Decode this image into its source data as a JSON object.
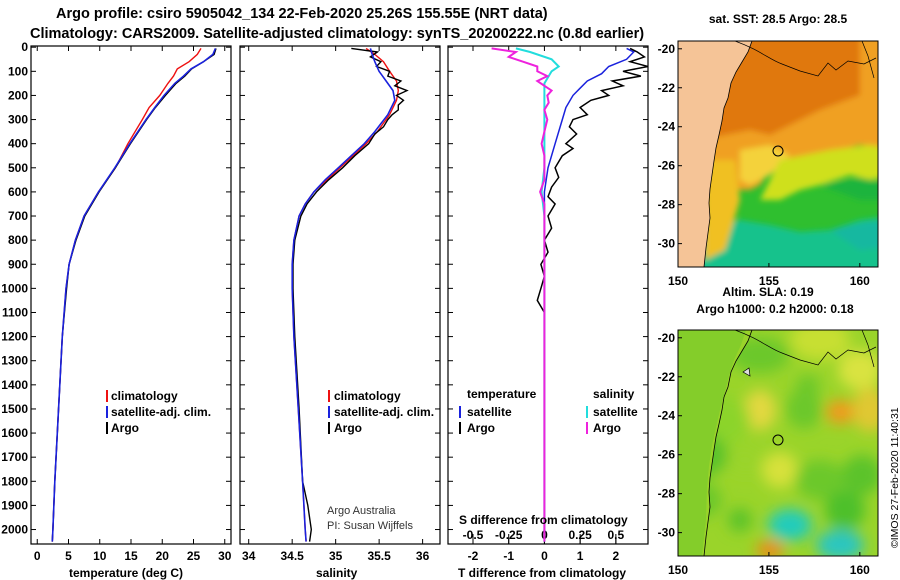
{
  "header": {
    "title_line1": "Argo profile: csiro 5905042_134 22-Feb-2020 25.26S 155.55E (NRT data)",
    "title_line2": "Climatology: CARS2009. Satellite-adjusted climatology: synTS_20200222.nc (0.8d earlier)"
  },
  "credits": {
    "line1": "Argo Australia",
    "line2": "PI: Susan Wijffels",
    "stamp": "©IMOS 27-Feb-2020 11:40:31"
  },
  "colors": {
    "climatology": "#ee1111",
    "satellite": "#1a22dd",
    "argo": "#000000",
    "sat_salinity": "#22dddd",
    "argo_salinity": "#ee22dd",
    "land": "#f5c497"
  },
  "chart_data": [
    {
      "type": "line",
      "name": "temperature-profile",
      "xlabel": "temperature (deg C)",
      "ylabel": "",
      "xlim": [
        -1,
        31
      ],
      "ylim": [
        2060,
        -5
      ],
      "xticks": [
        0,
        5,
        10,
        15,
        20,
        25,
        30
      ],
      "yticks": [
        0,
        100,
        200,
        300,
        400,
        500,
        600,
        700,
        800,
        900,
        1000,
        1100,
        1200,
        1300,
        1400,
        1500,
        1600,
        1700,
        1800,
        1900,
        2000
      ],
      "legend": [
        "climatology",
        "satellite-adj. clim.",
        "Argo"
      ],
      "series": [
        {
          "name": "climatology",
          "depth": [
            5,
            30,
            60,
            90,
            120,
            150,
            200,
            250,
            300,
            400,
            500,
            600,
            700,
            800,
            900,
            1000,
            1200,
            1400,
            1600,
            1800,
            2000,
            2050
          ],
          "values": [
            26.2,
            25.6,
            24.3,
            22.4,
            21.8,
            20.9,
            19.6,
            17.9,
            16.8,
            14.5,
            12.5,
            9.8,
            7.5,
            6.1,
            5.1,
            4.6,
            4.0,
            3.6,
            3.2,
            2.8,
            2.5,
            2.4
          ]
        },
        {
          "name": "satellite-adj. clim.",
          "depth": [
            5,
            30,
            60,
            90,
            120,
            150,
            200,
            250,
            300,
            400,
            500,
            600,
            700,
            800,
            900,
            1000,
            1200,
            1400,
            1600,
            1800,
            2000,
            2050
          ],
          "values": [
            28.5,
            28.1,
            26.6,
            24.6,
            23.4,
            22.0,
            20.3,
            18.8,
            17.4,
            14.8,
            12.4,
            9.8,
            7.5,
            6.1,
            5.1,
            4.6,
            4.0,
            3.6,
            3.2,
            2.8,
            2.5,
            2.4
          ]
        },
        {
          "name": "Argo",
          "depth": [
            5,
            30,
            60,
            90,
            120,
            150,
            200,
            250,
            300,
            400,
            500,
            600,
            700,
            800,
            900,
            1000,
            1200,
            1400,
            1600,
            1800,
            2000,
            2050
          ],
          "values": [
            28.6,
            28.3,
            26.6,
            24.7,
            23.6,
            22.2,
            20.5,
            18.9,
            17.5,
            14.9,
            12.5,
            9.9,
            7.6,
            6.2,
            5.1,
            4.7,
            4.0,
            3.6,
            3.2,
            2.8,
            2.5,
            2.4
          ]
        }
      ]
    },
    {
      "type": "line",
      "name": "salinity-profile",
      "xlabel": "salinity",
      "xlim": [
        33.9,
        36.2
      ],
      "ylim": [
        2060,
        -5
      ],
      "xticks": [
        34,
        34.5,
        35,
        35.5,
        36
      ],
      "legend": [
        "climatology",
        "satellite-adj. clim.",
        "Argo"
      ],
      "series": [
        {
          "name": "climatology",
          "depth": [
            5,
            30,
            60,
            100,
            140,
            180,
            220,
            280,
            350,
            400,
            450,
            500,
            550,
            600,
            650,
            700,
            800,
            900,
            1000,
            1200,
            1500,
            1800,
            2000,
            2050
          ],
          "values": [
            35.35,
            35.45,
            35.55,
            35.62,
            35.7,
            35.72,
            35.7,
            35.62,
            35.48,
            35.35,
            35.2,
            35.05,
            34.9,
            34.75,
            34.65,
            34.58,
            34.52,
            34.5,
            34.5,
            34.52,
            34.57,
            34.62,
            34.65,
            34.66
          ]
        },
        {
          "name": "satellite-adj. clim.",
          "depth": [
            5,
            30,
            60,
            100,
            140,
            180,
            220,
            280,
            350,
            400,
            450,
            500,
            550,
            600,
            650,
            700,
            800,
            900,
            1000,
            1200,
            1500,
            1800,
            2000,
            2050
          ],
          "values": [
            35.4,
            35.42,
            35.45,
            35.5,
            35.58,
            35.66,
            35.68,
            35.6,
            35.45,
            35.33,
            35.18,
            35.03,
            34.88,
            34.75,
            34.65,
            34.58,
            34.52,
            34.5,
            34.5,
            34.52,
            34.57,
            34.62,
            34.65,
            34.66
          ]
        },
        {
          "name": "Argo",
          "depth": [
            5,
            20,
            40,
            60,
            80,
            100,
            120,
            140,
            160,
            180,
            200,
            220,
            240,
            260,
            280,
            300,
            330,
            360,
            400,
            450,
            500,
            550,
            600,
            650,
            700,
            800,
            900,
            1000,
            1200,
            1500,
            1800,
            1900,
            2000,
            2050
          ],
          "values": [
            35.18,
            35.48,
            35.4,
            35.52,
            35.47,
            35.62,
            35.6,
            35.75,
            35.68,
            35.82,
            35.7,
            35.78,
            35.72,
            35.72,
            35.65,
            35.6,
            35.55,
            35.45,
            35.38,
            35.22,
            35.08,
            34.92,
            34.78,
            34.67,
            34.6,
            34.53,
            34.51,
            34.51,
            34.53,
            34.58,
            34.62,
            34.68,
            34.72,
            34.7
          ]
        }
      ]
    },
    {
      "type": "line",
      "name": "difference-profile",
      "xlabel": "T difference from climatology",
      "top_xlabel": "S difference from climatology",
      "xlim": [
        -2.7,
        2.9
      ],
      "xticks": [
        -2,
        -1,
        0,
        1,
        2
      ],
      "top_xlim": [
        -0.675,
        0.725
      ],
      "top_xticks": [
        -0.5,
        -0.25,
        0,
        0.25,
        0.5
      ],
      "top_xtick_labels": [
        "-0.5",
        "-0.25",
        "0",
        "0.25",
        "0.5"
      ],
      "ylim": [
        2060,
        -5
      ],
      "legend_titles": [
        "temperature",
        "salinity"
      ],
      "legend": [
        "satellite",
        "Argo",
        "satellite",
        "Argo"
      ],
      "series": [
        {
          "name": "T satellite",
          "depth": [
            5,
            20,
            50,
            80,
            110,
            140,
            170,
            200,
            250,
            300,
            400,
            500,
            600,
            700,
            800,
            900,
            1000,
            1200,
            1500,
            2050
          ],
          "values": [
            2.3,
            2.5,
            2.3,
            1.8,
            1.6,
            1.2,
            1.0,
            0.8,
            0.6,
            0.5,
            0.3,
            0.1,
            0.0,
            0.0,
            0.0,
            0.0,
            0.0,
            0.0,
            0.0,
            0.0
          ]
        },
        {
          "name": "T Argo",
          "depth": [
            5,
            20,
            40,
            60,
            80,
            100,
            120,
            140,
            160,
            180,
            200,
            220,
            250,
            280,
            300,
            330,
            360,
            400,
            420,
            450,
            500,
            540,
            580,
            620,
            650,
            700,
            750,
            800,
            850,
            900,
            950,
            1000,
            1050,
            1100,
            1200,
            1500,
            1800,
            2050
          ],
          "values": [
            2.4,
            2.6,
            2.8,
            2.4,
            2.9,
            2.2,
            2.7,
            1.9,
            2.2,
            1.6,
            1.8,
            1.3,
            1.0,
            1.2,
            0.8,
            0.7,
            0.9,
            0.6,
            0.8,
            0.5,
            0.3,
            0.4,
            0.2,
            0.1,
            0.3,
            0.1,
            0.2,
            0.0,
            0.1,
            -0.1,
            0.0,
            -0.1,
            -0.2,
            0.0,
            0.0,
            0.0,
            0.0,
            0.0
          ]
        },
        {
          "name": "S satellite",
          "depth": [
            5,
            20,
            50,
            80,
            100,
            150,
            200,
            250,
            300,
            400,
            500,
            600,
            700,
            800,
            1000,
            1500,
            2050
          ],
          "values": [
            -0.2,
            -0.1,
            0.05,
            0.1,
            0.05,
            0.0,
            0.0,
            0.0,
            0.0,
            0.0,
            0.0,
            -0.02,
            0.0,
            0.0,
            0.0,
            0.0,
            0.0
          ]
        },
        {
          "name": "S Argo",
          "depth": [
            5,
            20,
            40,
            60,
            80,
            100,
            120,
            140,
            160,
            180,
            200,
            230,
            260,
            300,
            350,
            400,
            450,
            500,
            550,
            600,
            650,
            700,
            800,
            1000,
            1500,
            2050
          ],
          "values": [
            -0.37,
            -0.2,
            -0.25,
            -0.15,
            -0.05,
            -0.05,
            0.02,
            -0.05,
            0.0,
            0.05,
            0.02,
            0.03,
            0.0,
            0.02,
            0.0,
            -0.02,
            0.0,
            0.0,
            0.0,
            -0.03,
            0.0,
            0.0,
            0.0,
            0.0,
            0.0,
            0.0
          ]
        }
      ]
    },
    {
      "type": "heatmap",
      "name": "sst-map",
      "title": "sat. SST: 28.5 Argo: 28.5",
      "xlim": [
        150,
        161
      ],
      "ylim": [
        -31.2,
        -19.6
      ],
      "xticks": [
        150,
        155,
        160
      ],
      "yticks": [
        -20,
        -22,
        -24,
        -26,
        -28,
        -30
      ]
    },
    {
      "type": "heatmap",
      "name": "sla-map",
      "title_line1": "Altim. SLA: 0.19",
      "title_line2": "Argo h1000: 0.2 h2000: 0.18",
      "xlim": [
        150,
        161
      ],
      "ylim": [
        -31.2,
        -19.6
      ],
      "xticks": [
        150,
        155,
        160
      ],
      "yticks": [
        -20,
        -22,
        -24,
        -26,
        -28,
        -30
      ]
    }
  ]
}
